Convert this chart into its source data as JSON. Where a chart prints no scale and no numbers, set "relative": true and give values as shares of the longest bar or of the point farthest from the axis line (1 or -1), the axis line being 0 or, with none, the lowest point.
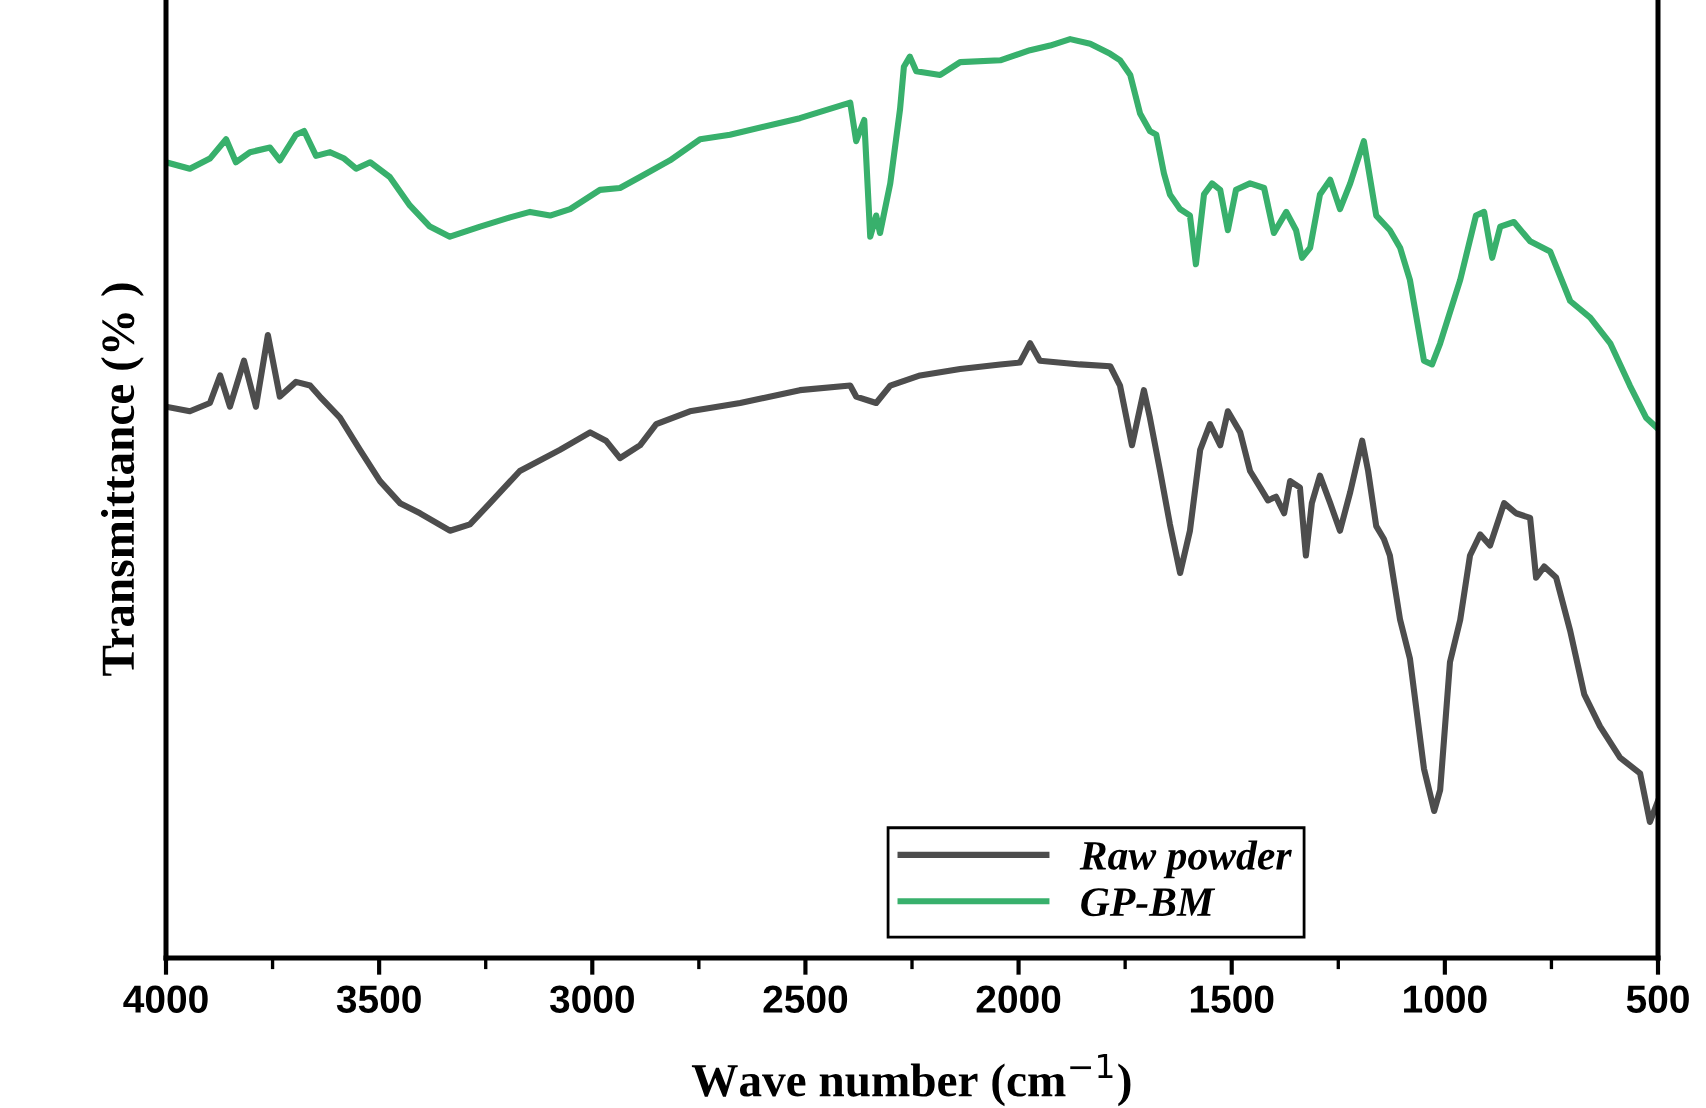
{
  "chart_data": {
    "type": "line",
    "relative": true,
    "xlabel": "Wave number (cm$^{−1}$)",
    "ylabel": "Transmittance (% )",
    "xlim": [
      4000,
      500
    ],
    "xticks": [
      4000,
      3500,
      3000,
      2500,
      2000,
      1500,
      1000,
      500
    ],
    "grid": false,
    "legend": "bottom",
    "tick_labels": "x",
    "line_style": "solid",
    "marker": "none",
    "series": [
      {
        "name": "Raw powder",
        "color": "#4d4d4d",
        "x": [
          4000,
          3944,
          3897,
          3873,
          3850,
          3817,
          3789,
          3761,
          3733,
          3695,
          3662,
          3639,
          3592,
          3545,
          3498,
          3451,
          3404,
          3334,
          3287,
          3240,
          3170,
          3076,
          3005,
          2968,
          2935,
          2888,
          2850,
          2771,
          2653,
          2513,
          2395,
          2381,
          2334,
          2301,
          2231,
          2137,
          2043,
          1997,
          1973,
          1950,
          1856,
          1785,
          1762,
          1734,
          1706,
          1692,
          1668,
          1645,
          1621,
          1598,
          1574,
          1551,
          1527,
          1509,
          1480,
          1457,
          1433,
          1415,
          1396,
          1377,
          1363,
          1340,
          1326,
          1312,
          1293,
          1269,
          1246,
          1222,
          1194,
          1180,
          1161,
          1143,
          1129,
          1105,
          1082,
          1049,
          1025,
          1011,
          988,
          964,
          941,
          917,
          894,
          861,
          833,
          800,
          786,
          767,
          739,
          706,
          673,
          636,
          589,
          542,
          519,
          500
        ],
        "values": [
          0.6,
          0.595,
          0.604,
          0.634,
          0.6,
          0.65,
          0.6,
          0.678,
          0.611,
          0.627,
          0.623,
          0.611,
          0.588,
          0.553,
          0.519,
          0.495,
          0.484,
          0.465,
          0.472,
          0.495,
          0.53,
          0.553,
          0.572,
          0.563,
          0.544,
          0.558,
          0.581,
          0.595,
          0.604,
          0.618,
          0.623,
          0.611,
          0.604,
          0.623,
          0.634,
          0.641,
          0.646,
          0.648,
          0.669,
          0.65,
          0.646,
          0.644,
          0.623,
          0.558,
          0.618,
          0.588,
          0.53,
          0.472,
          0.419,
          0.465,
          0.553,
          0.581,
          0.558,
          0.595,
          0.572,
          0.53,
          0.512,
          0.498,
          0.502,
          0.484,
          0.519,
          0.512,
          0.438,
          0.495,
          0.525,
          0.495,
          0.465,
          0.507,
          0.563,
          0.53,
          0.47,
          0.456,
          0.438,
          0.368,
          0.326,
          0.206,
          0.16,
          0.183,
          0.322,
          0.368,
          0.438,
          0.461,
          0.449,
          0.495,
          0.484,
          0.479,
          0.414,
          0.426,
          0.414,
          0.356,
          0.287,
          0.252,
          0.218,
          0.201,
          0.148,
          0.171
        ]
      },
      {
        "name": "GP-BM",
        "color": "#38b06c",
        "x": [
          4000,
          3944,
          3897,
          3859,
          3836,
          3803,
          3756,
          3733,
          3695,
          3676,
          3648,
          3615,
          3582,
          3554,
          3521,
          3475,
          3428,
          3381,
          3334,
          3263,
          3193,
          3146,
          3099,
          3052,
          2982,
          2935,
          2888,
          2818,
          2747,
          2677,
          2513,
          2395,
          2381,
          2362,
          2348,
          2334,
          2325,
          2301,
          2278,
          2269,
          2255,
          2240,
          2184,
          2137,
          2043,
          1973,
          1926,
          1879,
          1832,
          1785,
          1762,
          1738,
          1715,
          1692,
          1677,
          1659,
          1645,
          1621,
          1598,
          1584,
          1565,
          1546,
          1527,
          1509,
          1490,
          1457,
          1424,
          1401,
          1372,
          1349,
          1335,
          1316,
          1293,
          1269,
          1246,
          1222,
          1190,
          1161,
          1129,
          1105,
          1082,
          1049,
          1030,
          1011,
          964,
          927,
          908,
          889,
          870,
          838,
          800,
          753,
          706,
          659,
          612,
          566,
          528,
          500
        ],
        "values": [
          0.866,
          0.859,
          0.87,
          0.891,
          0.866,
          0.877,
          0.882,
          0.868,
          0.896,
          0.9,
          0.873,
          0.877,
          0.87,
          0.859,
          0.866,
          0.85,
          0.819,
          0.796,
          0.785,
          0.796,
          0.806,
          0.812,
          0.808,
          0.815,
          0.836,
          0.838,
          0.85,
          0.868,
          0.891,
          0.896,
          0.914,
          0.931,
          0.889,
          0.912,
          0.785,
          0.808,
          0.789,
          0.843,
          0.924,
          0.97,
          0.981,
          0.965,
          0.961,
          0.975,
          0.977,
          0.988,
          0.993,
          1.0,
          0.995,
          0.984,
          0.977,
          0.961,
          0.919,
          0.9,
          0.896,
          0.854,
          0.831,
          0.815,
          0.808,
          0.755,
          0.831,
          0.843,
          0.836,
          0.792,
          0.836,
          0.843,
          0.838,
          0.789,
          0.812,
          0.792,
          0.762,
          0.773,
          0.831,
          0.847,
          0.815,
          0.843,
          0.889,
          0.808,
          0.792,
          0.773,
          0.738,
          0.65,
          0.646,
          0.669,
          0.738,
          0.808,
          0.812,
          0.762,
          0.796,
          0.801,
          0.78,
          0.769,
          0.715,
          0.697,
          0.669,
          0.623,
          0.588,
          0.576
        ]
      }
    ]
  }
}
